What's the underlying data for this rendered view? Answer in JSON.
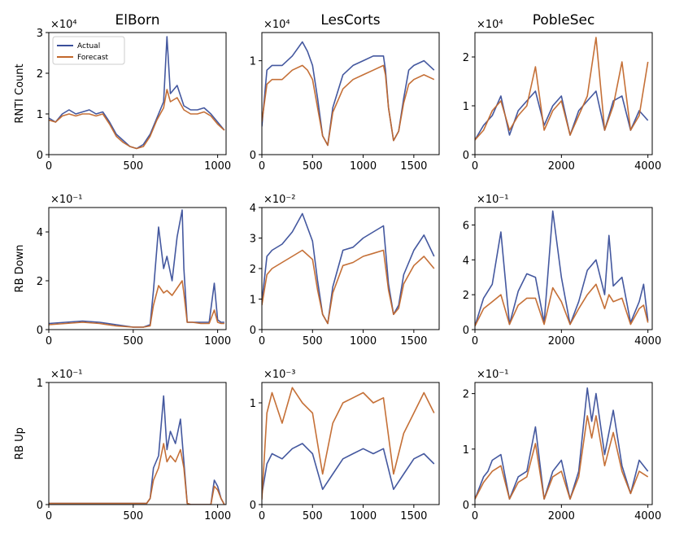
{
  "figure": {
    "columns": [
      "ElBorn",
      "LesCorts",
      "PobleSec"
    ],
    "rows": [
      "RNTI Count",
      "RB Down",
      "RB Up"
    ]
  },
  "colors": {
    "actual": "#3a4f9a",
    "forecast": "#c2682c"
  },
  "chart_data": [
    {
      "type": "line",
      "panel": "ElBorn / RNTI Count",
      "multiplier": "×10⁴",
      "xlim": [
        0,
        1050
      ],
      "ylim": [
        0,
        3
      ],
      "xticks": [
        0,
        500,
        1000
      ],
      "yticks": [
        0,
        1,
        2,
        3
      ],
      "legend": "top-left",
      "series": [
        {
          "name": "Actual",
          "x": [
            0,
            40,
            80,
            120,
            160,
            200,
            240,
            280,
            320,
            360,
            400,
            440,
            480,
            520,
            560,
            600,
            640,
            680,
            700,
            720,
            760,
            800,
            840,
            880,
            920,
            960,
            1000,
            1040
          ],
          "y": [
            0.9,
            0.8,
            1.0,
            1.1,
            1.0,
            1.05,
            1.1,
            1.0,
            1.05,
            0.8,
            0.5,
            0.35,
            0.2,
            0.15,
            0.25,
            0.5,
            0.9,
            1.3,
            2.9,
            1.5,
            1.7,
            1.2,
            1.1,
            1.1,
            1.15,
            1.0,
            0.8,
            0.6
          ]
        },
        {
          "name": "Forecast",
          "x": [
            0,
            40,
            80,
            120,
            160,
            200,
            240,
            280,
            320,
            360,
            400,
            440,
            480,
            520,
            560,
            600,
            640,
            680,
            700,
            720,
            760,
            800,
            840,
            880,
            920,
            960,
            1000,
            1040
          ],
          "y": [
            0.85,
            0.8,
            0.95,
            1.0,
            0.95,
            1.0,
            1.0,
            0.95,
            1.0,
            0.75,
            0.45,
            0.3,
            0.2,
            0.15,
            0.2,
            0.45,
            0.85,
            1.15,
            1.6,
            1.3,
            1.4,
            1.1,
            1.0,
            1.0,
            1.05,
            0.95,
            0.75,
            0.6
          ]
        }
      ]
    },
    {
      "type": "line",
      "panel": "LesCorts / RNTI Count",
      "multiplier": "×10⁴",
      "xlim": [
        0,
        1750
      ],
      "ylim": [
        0,
        1.3
      ],
      "xticks": [
        0,
        500,
        1000,
        1500
      ],
      "yticks": [
        0,
        1
      ],
      "series": [
        {
          "name": "Actual",
          "x": [
            0,
            50,
            100,
            200,
            300,
            400,
            450,
            500,
            550,
            600,
            650,
            700,
            800,
            900,
            1000,
            1100,
            1200,
            1220,
            1250,
            1300,
            1350,
            1400,
            1450,
            1500,
            1600,
            1700
          ],
          "y": [
            0.3,
            0.9,
            0.95,
            0.95,
            1.05,
            1.2,
            1.1,
            0.95,
            0.6,
            0.2,
            0.1,
            0.5,
            0.85,
            0.95,
            1.0,
            1.05,
            1.05,
            0.9,
            0.5,
            0.15,
            0.25,
            0.6,
            0.9,
            0.95,
            1.0,
            0.9
          ]
        },
        {
          "name": "Forecast",
          "x": [
            0,
            50,
            100,
            200,
            300,
            400,
            450,
            500,
            550,
            600,
            650,
            700,
            800,
            900,
            1000,
            1100,
            1200,
            1220,
            1250,
            1300,
            1350,
            1400,
            1450,
            1500,
            1600,
            1700
          ],
          "y": [
            0.35,
            0.75,
            0.8,
            0.8,
            0.9,
            0.95,
            0.9,
            0.8,
            0.5,
            0.2,
            0.1,
            0.45,
            0.7,
            0.8,
            0.85,
            0.9,
            0.95,
            0.85,
            0.5,
            0.15,
            0.25,
            0.55,
            0.75,
            0.8,
            0.85,
            0.8
          ]
        }
      ]
    },
    {
      "type": "line",
      "panel": "PobleSec / RNTI Count",
      "multiplier": "×10⁴",
      "xlim": [
        0,
        4100
      ],
      "ylim": [
        0,
        2.5
      ],
      "xticks": [
        0,
        2000,
        4000
      ],
      "yticks": [
        0,
        1,
        2
      ],
      "series": [
        {
          "name": "Actual",
          "x": [
            0,
            200,
            400,
            600,
            800,
            1000,
            1200,
            1400,
            1600,
            1800,
            2000,
            2200,
            2400,
            2600,
            2800,
            3000,
            3200,
            3400,
            3600,
            3800,
            4000
          ],
          "y": [
            0.3,
            0.6,
            0.8,
            1.2,
            0.4,
            0.9,
            1.1,
            1.3,
            0.6,
            1.0,
            1.2,
            0.4,
            0.9,
            1.1,
            1.3,
            0.5,
            1.1,
            1.2,
            0.5,
            0.9,
            0.7
          ]
        },
        {
          "name": "Forecast",
          "x": [
            0,
            200,
            400,
            600,
            800,
            1000,
            1200,
            1400,
            1600,
            1800,
            2000,
            2200,
            2400,
            2600,
            2800,
            3000,
            3200,
            3400,
            3600,
            3800,
            4000
          ],
          "y": [
            0.3,
            0.5,
            0.9,
            1.1,
            0.5,
            0.8,
            1.0,
            1.8,
            0.5,
            0.9,
            1.1,
            0.4,
            0.8,
            1.2,
            2.4,
            0.5,
            1.0,
            1.9,
            0.5,
            0.8,
            1.9
          ]
        }
      ]
    },
    {
      "type": "line",
      "panel": "ElBorn / RB Down",
      "multiplier": "×10⁻¹",
      "xlim": [
        0,
        1050
      ],
      "ylim": [
        0,
        5
      ],
      "xticks": [
        0,
        500,
        1000
      ],
      "yticks": [
        0,
        2,
        4
      ],
      "series": [
        {
          "name": "Actual",
          "x": [
            0,
            100,
            200,
            300,
            400,
            500,
            560,
            600,
            620,
            650,
            680,
            700,
            730,
            760,
            790,
            800,
            820,
            850,
            900,
            950,
            980,
            1000,
            1020,
            1040
          ],
          "y": [
            0.25,
            0.3,
            0.35,
            0.3,
            0.2,
            0.1,
            0.1,
            0.2,
            1.6,
            4.2,
            2.5,
            3.0,
            2.0,
            3.8,
            4.9,
            2.5,
            0.3,
            0.3,
            0.3,
            0.3,
            1.9,
            0.4,
            0.3,
            0.3
          ]
        },
        {
          "name": "Forecast",
          "x": [
            0,
            100,
            200,
            300,
            400,
            500,
            560,
            600,
            620,
            650,
            680,
            700,
            730,
            760,
            790,
            800,
            820,
            850,
            900,
            950,
            980,
            1000,
            1020,
            1040
          ],
          "y": [
            0.2,
            0.25,
            0.3,
            0.25,
            0.15,
            0.1,
            0.1,
            0.15,
            1.0,
            1.8,
            1.5,
            1.6,
            1.4,
            1.7,
            2.0,
            1.5,
            0.3,
            0.3,
            0.25,
            0.25,
            0.8,
            0.3,
            0.25,
            0.25
          ]
        }
      ]
    },
    {
      "type": "line",
      "panel": "LesCorts / RB Down",
      "multiplier": "×10⁻²",
      "xlim": [
        0,
        1750
      ],
      "ylim": [
        0,
        4
      ],
      "xticks": [
        0,
        500,
        1000,
        1500
      ],
      "yticks": [
        0,
        1,
        2,
        3,
        4
      ],
      "series": [
        {
          "name": "Actual",
          "x": [
            0,
            50,
            100,
            200,
            300,
            400,
            500,
            550,
            600,
            650,
            700,
            800,
            900,
            1000,
            1100,
            1200,
            1250,
            1300,
            1350,
            1400,
            1500,
            1600,
            1700
          ],
          "y": [
            0.9,
            2.4,
            2.6,
            2.8,
            3.2,
            3.8,
            2.9,
            1.6,
            0.5,
            0.2,
            1.4,
            2.6,
            2.7,
            3.0,
            3.2,
            3.4,
            1.5,
            0.5,
            0.8,
            1.8,
            2.6,
            3.1,
            2.4
          ]
        },
        {
          "name": "Forecast",
          "x": [
            0,
            50,
            100,
            200,
            300,
            400,
            500,
            550,
            600,
            650,
            700,
            800,
            900,
            1000,
            1100,
            1200,
            1250,
            1300,
            1350,
            1400,
            1500,
            1600,
            1700
          ],
          "y": [
            0.8,
            1.8,
            2.0,
            2.2,
            2.4,
            2.6,
            2.3,
            1.3,
            0.5,
            0.2,
            1.2,
            2.1,
            2.2,
            2.4,
            2.5,
            2.6,
            1.3,
            0.5,
            0.7,
            1.5,
            2.1,
            2.4,
            2.0
          ]
        }
      ]
    },
    {
      "type": "line",
      "panel": "PobleSec / RB Down",
      "multiplier": "×10⁻¹",
      "xlim": [
        0,
        4100
      ],
      "ylim": [
        0,
        7
      ],
      "xticks": [
        0,
        2000,
        4000
      ],
      "yticks": [
        0,
        2,
        4,
        6
      ],
      "series": [
        {
          "name": "Actual",
          "x": [
            0,
            200,
            400,
            600,
            800,
            1000,
            1200,
            1400,
            1600,
            1800,
            2000,
            2200,
            2400,
            2600,
            2800,
            3000,
            3100,
            3200,
            3400,
            3600,
            3800,
            3900,
            4000
          ],
          "y": [
            0.2,
            1.8,
            2.6,
            5.6,
            0.3,
            2.2,
            3.2,
            3.0,
            0.4,
            6.8,
            3.0,
            0.3,
            1.6,
            3.4,
            4.0,
            2.0,
            5.4,
            2.5,
            3.0,
            0.4,
            1.6,
            2.6,
            0.5
          ]
        },
        {
          "name": "Forecast",
          "x": [
            0,
            200,
            400,
            600,
            800,
            1000,
            1200,
            1400,
            1600,
            1800,
            2000,
            2200,
            2400,
            2600,
            2800,
            3000,
            3100,
            3200,
            3400,
            3600,
            3800,
            3900,
            4000
          ],
          "y": [
            0.2,
            1.2,
            1.6,
            2.0,
            0.3,
            1.4,
            1.8,
            1.8,
            0.3,
            2.4,
            1.6,
            0.3,
            1.2,
            2.0,
            2.6,
            1.2,
            2.0,
            1.6,
            1.8,
            0.3,
            1.2,
            1.4,
            0.4
          ]
        }
      ]
    },
    {
      "type": "line",
      "panel": "ElBorn / RB Up",
      "multiplier": "×10⁻¹",
      "xlim": [
        0,
        1050
      ],
      "ylim": [
        0,
        1
      ],
      "xticks": [
        0,
        500,
        1000
      ],
      "yticks": [
        0,
        1
      ],
      "series": [
        {
          "name": "Actual",
          "x": [
            0,
            100,
            200,
            300,
            400,
            500,
            580,
            600,
            620,
            650,
            680,
            700,
            720,
            750,
            780,
            800,
            820,
            840,
            900,
            960,
            980,
            1000,
            1020,
            1040
          ],
          "y": [
            0.01,
            0.01,
            0.01,
            0.01,
            0.01,
            0.01,
            0.01,
            0.05,
            0.3,
            0.4,
            0.89,
            0.45,
            0.6,
            0.5,
            0.7,
            0.35,
            0.01,
            0.0,
            0.0,
            0.0,
            0.2,
            0.15,
            0.05,
            0.0
          ]
        },
        {
          "name": "Forecast",
          "x": [
            0,
            100,
            200,
            300,
            400,
            500,
            580,
            600,
            620,
            650,
            680,
            700,
            720,
            750,
            780,
            800,
            820,
            840,
            900,
            960,
            980,
            1000,
            1020,
            1040
          ],
          "y": [
            0.01,
            0.01,
            0.01,
            0.01,
            0.01,
            0.01,
            0.01,
            0.05,
            0.2,
            0.3,
            0.5,
            0.35,
            0.4,
            0.35,
            0.45,
            0.3,
            0.01,
            0.0,
            0.0,
            0.0,
            0.15,
            0.12,
            0.05,
            0.0
          ]
        }
      ]
    },
    {
      "type": "line",
      "panel": "LesCorts / RB Up",
      "multiplier": "×10⁻³",
      "xlim": [
        0,
        1750
      ],
      "ylim": [
        0,
        1.2
      ],
      "xticks": [
        0,
        500,
        1000,
        1500
      ],
      "yticks": [
        0,
        1
      ],
      "series": [
        {
          "name": "Actual",
          "x": [
            0,
            50,
            100,
            200,
            300,
            400,
            500,
            600,
            700,
            800,
            900,
            1000,
            1100,
            1200,
            1300,
            1400,
            1500,
            1600,
            1700
          ],
          "y": [
            0.1,
            0.4,
            0.5,
            0.45,
            0.55,
            0.6,
            0.5,
            0.15,
            0.3,
            0.45,
            0.5,
            0.55,
            0.5,
            0.55,
            0.15,
            0.3,
            0.45,
            0.5,
            0.4
          ]
        },
        {
          "name": "Forecast",
          "x": [
            0,
            50,
            100,
            200,
            300,
            400,
            500,
            600,
            700,
            800,
            900,
            1000,
            1100,
            1200,
            1300,
            1400,
            1500,
            1600,
            1700
          ],
          "y": [
            0.05,
            0.9,
            1.1,
            0.8,
            1.15,
            1.0,
            0.9,
            0.3,
            0.8,
            1.0,
            1.05,
            1.1,
            1.0,
            1.05,
            0.3,
            0.7,
            0.9,
            1.1,
            0.9
          ]
        }
      ]
    },
    {
      "type": "line",
      "panel": "PobleSec / RB Up",
      "multiplier": "×10⁻¹",
      "xlim": [
        0,
        4100
      ],
      "ylim": [
        0,
        2.2
      ],
      "xticks": [
        0,
        2000,
        4000
      ],
      "yticks": [
        0,
        1,
        2
      ],
      "series": [
        {
          "name": "Actual",
          "x": [
            0,
            200,
            300,
            400,
            600,
            800,
            1000,
            1200,
            1400,
            1600,
            1800,
            2000,
            2200,
            2400,
            2600,
            2700,
            2800,
            3000,
            3200,
            3400,
            3600,
            3800,
            4000
          ],
          "y": [
            0.1,
            0.5,
            0.6,
            0.8,
            0.9,
            0.1,
            0.5,
            0.6,
            1.4,
            0.1,
            0.6,
            0.8,
            0.1,
            0.6,
            2.1,
            1.5,
            2.0,
            0.9,
            1.7,
            0.7,
            0.2,
            0.8,
            0.6
          ]
        },
        {
          "name": "Forecast",
          "x": [
            0,
            200,
            300,
            400,
            600,
            800,
            1000,
            1200,
            1400,
            1600,
            1800,
            2000,
            2200,
            2400,
            2600,
            2700,
            2800,
            3000,
            3200,
            3400,
            3600,
            3800,
            4000
          ],
          "y": [
            0.1,
            0.4,
            0.5,
            0.6,
            0.7,
            0.1,
            0.4,
            0.5,
            1.1,
            0.1,
            0.5,
            0.6,
            0.1,
            0.5,
            1.6,
            1.2,
            1.6,
            0.7,
            1.3,
            0.6,
            0.2,
            0.6,
            0.5
          ]
        }
      ]
    }
  ]
}
